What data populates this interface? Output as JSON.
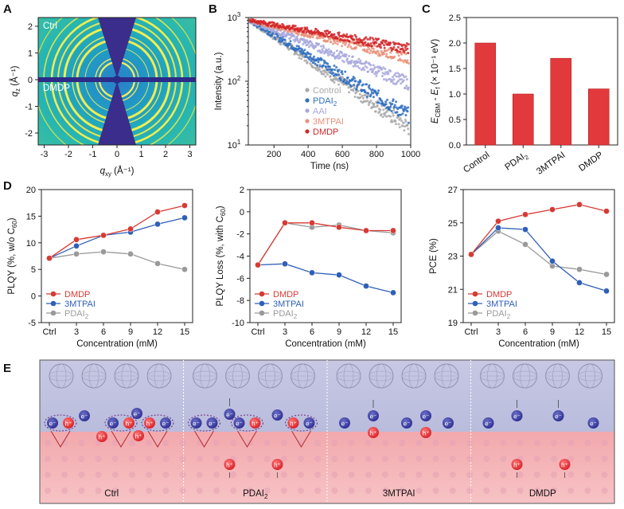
{
  "panels": {
    "A": {
      "letter": "A",
      "label_top": "Ctrl",
      "label_bottom": "DMDP",
      "xlabel": "q",
      "xlabel_sub": "xy",
      "xlabel_unit": " (Å⁻¹)",
      "ylabel": "q",
      "ylabel_sub": "z",
      "ylabel_unit": " (Å⁻¹)",
      "xticks": [
        "-3",
        "-2",
        "-1",
        "0",
        "1",
        "2",
        "3"
      ],
      "yticks": [
        "2",
        "1",
        "0",
        "-1",
        "-2"
      ]
    },
    "E": {
      "letter": "E",
      "labels": [
        "Ctrl",
        "PDAI",
        "3MTPAI",
        "DMDP"
      ],
      "label_sub_pdai": "2",
      "electron_symbol": "e⁻",
      "hole_symbol": "h⁺"
    }
  },
  "chart_data": [
    {
      "id": "B",
      "letter": "B",
      "type": "scatter",
      "xlabel": "Time (ns)",
      "ylabel": "Intensity (a.u.)",
      "xlim": [
        50,
        1000
      ],
      "ylim_log": [
        10,
        1000
      ],
      "log_y": true,
      "xticks": [
        "200",
        "400",
        "600",
        "800",
        "1000"
      ],
      "yticks": [
        "10",
        "10",
        "10"
      ],
      "ytick_exps": [
        "1",
        "2",
        "3"
      ],
      "legend_position": "bottom-right",
      "series": [
        {
          "name": "Control",
          "color": "#a9a9a9",
          "start": 900,
          "end": 18
        },
        {
          "name": "PDAI",
          "sub": "2",
          "color": "#2f6fc1",
          "start": 900,
          "end": 28
        },
        {
          "name": "AAI",
          "color": "#a8a8de",
          "start": 900,
          "end": 90
        },
        {
          "name": "3MTPAI",
          "color": "#e9927a",
          "start": 900,
          "end": 230
        },
        {
          "name": "DMDP",
          "color": "#d2282b",
          "start": 900,
          "end": 320
        }
      ]
    },
    {
      "id": "C",
      "letter": "C",
      "type": "bar",
      "categories": [
        "Control",
        "PDAI",
        "3MTPAI",
        "DMDP"
      ],
      "category_subs": [
        "",
        "2",
        "",
        ""
      ],
      "values": [
        2.0,
        1.0,
        1.7,
        1.1
      ],
      "ylim": [
        0,
        2.5
      ],
      "yticks": [
        "0.0",
        "0.5",
        "1.0",
        "1.5",
        "2.0",
        "2.5"
      ],
      "ylabel": "E",
      "ylabel_sub1": "CBM",
      "ylabel_mid": " - E",
      "ylabel_sub2": "f",
      "ylabel_end": " (× 10⁻¹ eV)",
      "bar_color": "#e2393c"
    },
    {
      "id": "D1",
      "letter": "D",
      "type": "line",
      "categories": [
        "Ctrl",
        "3",
        "6",
        "9",
        "12",
        "15"
      ],
      "xlabel": "Concentration (mM)",
      "ylabel": "PLQY (%, w/o C",
      "ylabel_sub": "60",
      "ylabel_end": ")",
      "ylim": [
        -5,
        20
      ],
      "yticks": [
        "-5",
        "0",
        "5",
        "10",
        "15",
        "20"
      ],
      "legend_position": "bottom-left",
      "series": [
        {
          "name": "DMDP",
          "color": "#d83a34",
          "values": [
            7.1,
            10.6,
            11.4,
            12.6,
            15.8,
            17.0
          ]
        },
        {
          "name": "3MTPAI",
          "color": "#2f5fb8",
          "values": [
            7.1,
            9.4,
            11.4,
            12.0,
            13.5,
            14.7
          ]
        },
        {
          "name": "PDAI",
          "sub": "2",
          "color": "#9a9a9a",
          "values": [
            7.1,
            7.9,
            8.3,
            7.9,
            6.1,
            5.0
          ]
        }
      ]
    },
    {
      "id": "D2",
      "type": "line",
      "categories": [
        "Ctrl",
        "3",
        "6",
        "9",
        "12",
        "15"
      ],
      "xlabel": "Concentration (mM)",
      "ylabel": "PLQY Loss (%, with C",
      "ylabel_sub": "60",
      "ylabel_end": ")",
      "ylim": [
        -10,
        2
      ],
      "yticks": [
        "-10",
        "-8",
        "-6",
        "-4",
        "-2",
        "0",
        "2"
      ],
      "legend_position": "bottom-left",
      "series": [
        {
          "name": "DMDP",
          "color": "#d83a34",
          "values": [
            -4.8,
            -1.0,
            -1.0,
            -1.4,
            -1.7,
            -1.7
          ]
        },
        {
          "name": "3MTPAI",
          "color": "#2f5fb8",
          "values": [
            -4.8,
            -4.7,
            -5.5,
            -5.7,
            -6.7,
            -7.3
          ]
        },
        {
          "name": "PDAI",
          "sub": "2",
          "color": "#9a9a9a",
          "values": [
            -4.8,
            -1.0,
            -1.4,
            -1.2,
            -1.7,
            -1.9
          ]
        }
      ]
    },
    {
      "id": "D3",
      "type": "line",
      "categories": [
        "Ctrl",
        "3",
        "6",
        "9",
        "12",
        "15"
      ],
      "xlabel": "Concentration (mM)",
      "ylabel": "PCE (%)",
      "ylim": [
        19,
        27
      ],
      "yticks": [
        "19",
        "21",
        "23",
        "25",
        "27"
      ],
      "legend_position": "bottom-left",
      "series": [
        {
          "name": "DMDP",
          "color": "#d83a34",
          "values": [
            23.1,
            25.1,
            25.5,
            25.8,
            26.1,
            25.7
          ]
        },
        {
          "name": "3MTPAI",
          "color": "#2f5fb8",
          "values": [
            23.1,
            24.7,
            24.6,
            22.7,
            21.4,
            20.9
          ]
        },
        {
          "name": "PDAI",
          "sub": "2",
          "color": "#9a9a9a",
          "values": [
            23.1,
            24.5,
            23.7,
            22.4,
            22.2,
            21.9
          ]
        }
      ]
    }
  ]
}
